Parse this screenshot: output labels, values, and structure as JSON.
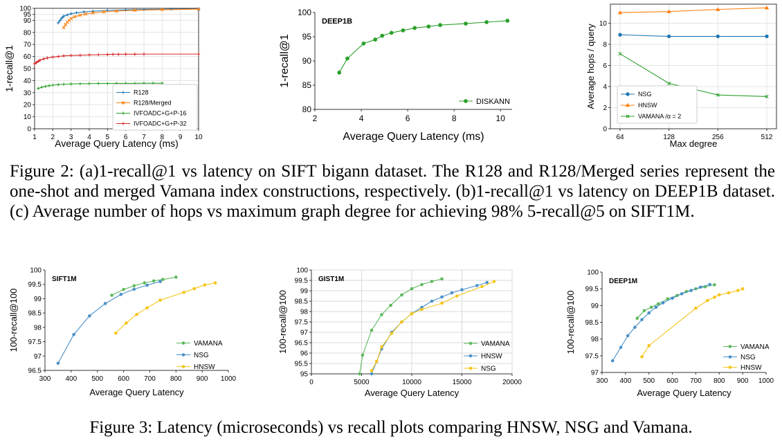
{
  "captions": {
    "fig2": "Figure 2: (a)1-recall@1 vs latency on SIFT bigann dataset. The R128 and R128/Merged series represent the one-shot and merged Vamana index constructions, respectively. (b)1-recall@1 vs latency on DEEP1B dataset. (c) Average number of hops vs maximum graph degree for achieving 98% 5-recall@5 on SIFT1M.",
    "fig3": "Figure 3: Latency (microseconds) vs recall plots comparing HNSW, NSG and Vamana."
  },
  "chart_data": [
    {
      "id": "fig2a",
      "type": "line",
      "title": "",
      "xlabel": "Average Query Latency (ms)",
      "ylabel": "1-recall@1",
      "xlim": [
        1,
        10
      ],
      "ylim": [
        0,
        100
      ],
      "xticks": [
        1,
        2,
        3,
        4,
        5,
        6,
        7,
        8,
        9,
        10
      ],
      "yticks": [
        0,
        10,
        20,
        30,
        40,
        50,
        60,
        70,
        80,
        90,
        95,
        100
      ],
      "legend_position": "bottom-right",
      "series": [
        {
          "name": "R128",
          "color": "#1f77b4",
          "marker": "+",
          "x": [
            2.3,
            2.4,
            2.5,
            2.6,
            2.8,
            3.0,
            3.3,
            3.7,
            4.2,
            5.0,
            6.0,
            7.0,
            8.5,
            10
          ],
          "y": [
            88,
            90,
            92,
            93.5,
            94.5,
            95.5,
            96.3,
            97,
            97.6,
            98.2,
            98.7,
            99,
            99.3,
            99.5
          ]
        },
        {
          "name": "R128/Merged",
          "color": "#ff7f0e",
          "marker": "x",
          "x": [
            2.6,
            2.7,
            2.8,
            2.9,
            3.0,
            3.2,
            3.5,
            3.8,
            4.2,
            4.8,
            5.5,
            6.5,
            8,
            10
          ],
          "y": [
            84,
            86.5,
            88.5,
            90,
            91.5,
            93,
            94.3,
            95.3,
            96.2,
            97,
            97.7,
            98.3,
            98.9,
            99.3
          ]
        },
        {
          "name": "IVFOADC+G+P-16",
          "color": "#2ca02c",
          "marker": "+",
          "x": [
            1.2,
            1.4,
            1.6,
            1.8,
            2.0,
            2.3,
            2.6,
            3.0,
            3.5,
            4.0,
            4.5,
            5.0,
            5.5,
            6.0,
            6.5,
            7.0,
            7.5,
            8.0
          ],
          "y": [
            33.5,
            34.5,
            35.2,
            35.8,
            36.2,
            36.6,
            37,
            37.2,
            37.4,
            37.5,
            37.6,
            37.6,
            37.7,
            37.7,
            37.7,
            37.8,
            37.8,
            37.8
          ]
        },
        {
          "name": "IVFOADC+G+P-32",
          "color": "#d62728",
          "marker": "+",
          "x": [
            1.0,
            1.1,
            1.2,
            1.3,
            1.5,
            1.7,
            2.0,
            2.3,
            2.6,
            3.0,
            3.5,
            4.0,
            4.5,
            5.0,
            5.3,
            5.6,
            6.0,
            6.5,
            7.0,
            10
          ],
          "y": [
            54,
            55,
            56,
            57,
            58,
            58.8,
            59.5,
            60,
            60.5,
            60.8,
            61,
            61.3,
            61.5,
            61.7,
            61.8,
            61.8,
            61.9,
            61.9,
            62,
            62
          ]
        }
      ]
    },
    {
      "id": "fig2b",
      "type": "line",
      "title": "DEEP1B",
      "xlabel": "Average Query Latency (ms)",
      "ylabel": "1-recall@1",
      "xlim": [
        2,
        10.5
      ],
      "ylim": [
        80,
        100
      ],
      "xticks": [
        2,
        4,
        6,
        8,
        10
      ],
      "yticks": [
        80,
        85,
        90,
        95,
        100
      ],
      "legend_position": "bottom-right",
      "series": [
        {
          "name": "DISKANN",
          "color": "#2ca02c",
          "marker": "o",
          "x": [
            3.05,
            3.4,
            4.1,
            4.6,
            4.9,
            5.3,
            5.8,
            6.3,
            6.9,
            7.4,
            8.5,
            9.4,
            10.3
          ],
          "y": [
            87.6,
            90.5,
            93.6,
            94.4,
            95.2,
            95.8,
            96.3,
            96.8,
            97.1,
            97.4,
            97.7,
            98.0,
            98.3
          ]
        }
      ]
    },
    {
      "id": "fig2c",
      "type": "line",
      "title": "",
      "xlabel": "Max degree",
      "ylabel": "Average hops / query",
      "categories": [
        "64",
        "128",
        "256",
        "512"
      ],
      "ylim": [
        0,
        11.8
      ],
      "yticks": [
        0,
        2,
        4,
        6,
        8,
        10
      ],
      "legend_position": "bottom-left",
      "series": [
        {
          "name": "NSG",
          "color": "#1f77b4",
          "marker": "o",
          "values": [
            8.9,
            8.75,
            8.75,
            8.75
          ]
        },
        {
          "name": "HNSW",
          "color": "#ff7f0e",
          "marker": "^",
          "values": [
            11.0,
            11.1,
            11.3,
            11.45
          ]
        },
        {
          "name": "VAMANA /α = 2",
          "color": "#2ca02c",
          "marker": "x",
          "values": [
            7.1,
            4.3,
            3.2,
            3.05
          ]
        }
      ]
    },
    {
      "id": "fig3a",
      "type": "line",
      "title": "SIFT1M",
      "xlabel": "Average Query Latency",
      "ylabel": "100-recall@100",
      "xlim": [
        300,
        1000
      ],
      "ylim": [
        96.5,
        100
      ],
      "xticks": [
        300,
        400,
        500,
        600,
        700,
        800,
        900,
        1000
      ],
      "yticks": [
        96.5,
        97,
        97.5,
        98,
        98.5,
        99,
        99.5,
        100
      ],
      "legend_position": "bottom-right",
      "series": [
        {
          "name": "VAMANA",
          "color": "#5cb85c",
          "marker": "o",
          "x": [
            555,
            600,
            640,
            680,
            715,
            750,
            800
          ],
          "y": [
            99.12,
            99.32,
            99.45,
            99.55,
            99.62,
            99.67,
            99.75
          ]
        },
        {
          "name": "NSG",
          "color": "#4a90c8",
          "marker": "o",
          "x": [
            350,
            410,
            470,
            530,
            590,
            640,
            690,
            740
          ],
          "y": [
            96.75,
            97.75,
            98.4,
            98.83,
            99.15,
            99.33,
            99.47,
            99.6
          ]
        },
        {
          "name": "HNSW",
          "color": "#f5c518",
          "marker": "o",
          "x": [
            570,
            610,
            650,
            690,
            740,
            830,
            870,
            910,
            950
          ],
          "y": [
            97.8,
            98.15,
            98.45,
            98.68,
            98.95,
            99.22,
            99.35,
            99.48,
            99.55
          ]
        }
      ]
    },
    {
      "id": "fig3b",
      "type": "line",
      "title": "GIST1M",
      "xlabel": "Average Query Latency",
      "ylabel": "100-recall@100",
      "xlim": [
        0,
        20000
      ],
      "ylim": [
        95,
        100
      ],
      "xticks": [
        0,
        5000,
        10000,
        15000,
        20000
      ],
      "yticks": [
        95,
        95.5,
        96,
        96.5,
        97,
        97.5,
        98,
        98.5,
        99,
        99.5,
        100
      ],
      "legend_position": "bottom-right",
      "series": [
        {
          "name": "VAMANA",
          "color": "#5cb85c",
          "marker": "o",
          "x": [
            4800,
            5100,
            6000,
            7000,
            7900,
            9000,
            10000,
            11000,
            12000,
            13000
          ],
          "y": [
            95,
            95.9,
            97.1,
            97.85,
            98.3,
            98.8,
            99.1,
            99.3,
            99.45,
            99.57
          ]
        },
        {
          "name": "HNSW",
          "color": "#4a90c8",
          "marker": "o",
          "x": [
            6000,
            6500,
            7000,
            8000,
            9000,
            10000,
            11000,
            12000,
            13000,
            14000,
            15000,
            16500,
            17500
          ],
          "y": [
            95,
            95.6,
            96.2,
            97,
            97.5,
            97.9,
            98.2,
            98.5,
            98.7,
            98.9,
            99.05,
            99.25,
            99.4
          ]
        },
        {
          "name": "NSG",
          "color": "#f5c518",
          "marker": "o",
          "x": [
            6000,
            6500,
            7000,
            8000,
            9000,
            10000,
            11000,
            13000,
            14500,
            17000,
            18200
          ],
          "y": [
            95.15,
            95.6,
            96.3,
            96.95,
            97.5,
            97.9,
            98.1,
            98.4,
            98.75,
            99.2,
            99.45
          ]
        }
      ]
    },
    {
      "id": "fig3c",
      "type": "line",
      "title": "DEEP1M",
      "xlabel": "Average Query Latency",
      "ylabel": "100-recall@100",
      "xlim": [
        300,
        1000
      ],
      "ylim": [
        97,
        100
      ],
      "xticks": [
        300,
        400,
        500,
        600,
        700,
        800,
        900,
        1000
      ],
      "yticks": [
        97,
        97.5,
        98,
        98.5,
        99,
        99.5,
        100
      ],
      "legend_position": "bottom-right",
      "series": [
        {
          "name": "VAMANA",
          "color": "#5cb85c",
          "marker": "o",
          "x": [
            450,
            480,
            510,
            540,
            580,
            620,
            660,
            700,
            740,
            780
          ],
          "y": [
            98.62,
            98.85,
            98.95,
            99.05,
            99.2,
            99.3,
            99.42,
            99.5,
            99.56,
            99.62
          ]
        },
        {
          "name": "NSG",
          "color": "#4a90c8",
          "marker": "o",
          "x": [
            345,
            380,
            410,
            440,
            470,
            500,
            530,
            560,
            600,
            640,
            680,
            720,
            760
          ],
          "y": [
            97.35,
            97.75,
            98.1,
            98.35,
            98.58,
            98.78,
            98.95,
            99.08,
            99.22,
            99.35,
            99.45,
            99.55,
            99.63
          ]
        },
        {
          "name": "HNSW",
          "color": "#f5c518",
          "marker": "o",
          "x": [
            470,
            500,
            700,
            750,
            780,
            800,
            840,
            880,
            900
          ],
          "y": [
            97.47,
            97.8,
            98.92,
            99.15,
            99.25,
            99.32,
            99.38,
            99.45,
            99.5
          ]
        }
      ]
    }
  ]
}
